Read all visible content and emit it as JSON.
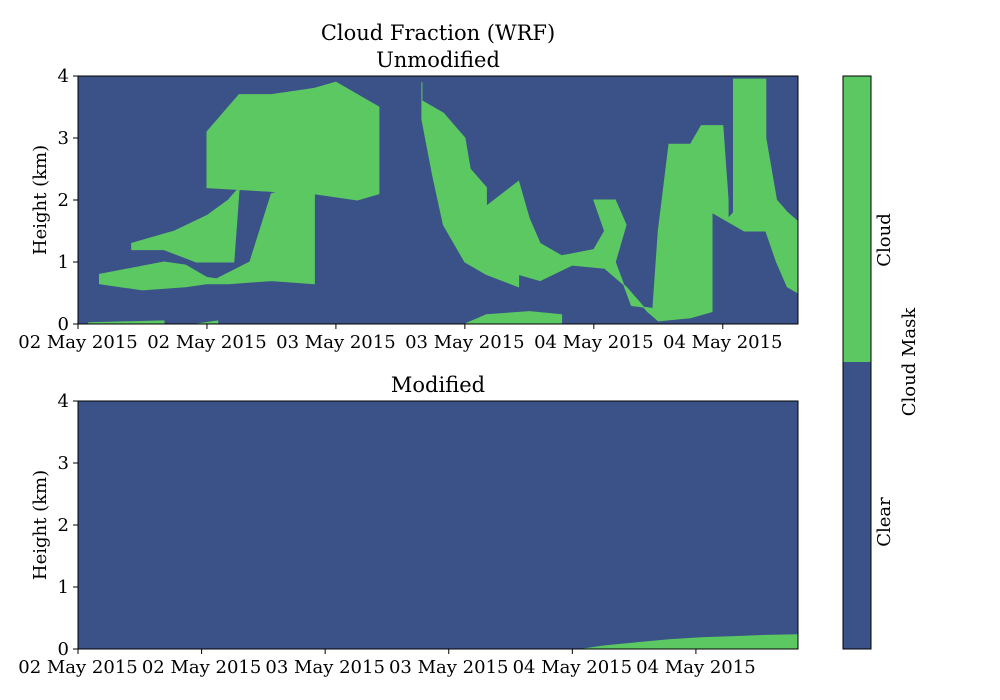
{
  "title": "Cloud Fraction (WRF)",
  "colors": {
    "clear": "#3b5288",
    "cloud": "#5cc862"
  },
  "chart_data": [
    {
      "type": "heatmap",
      "subtitle": "Unmodified",
      "xlabel": "",
      "ylabel": "Height (km)",
      "xlim_hours": [
        0,
        67
      ],
      "ylim": [
        0,
        4
      ],
      "xtick_hours": [
        0,
        12,
        24,
        36,
        48,
        60
      ],
      "xticks": [
        "02 May 2015",
        "02 May 2015",
        "03 May 2015",
        "03 May 2015",
        "04 May 2015",
        "04 May 2015"
      ],
      "yticks": [
        "0",
        "1",
        "2",
        "3",
        "4"
      ],
      "cloud_regions": [
        [
          [
            2,
            0.8
          ],
          [
            5,
            0.9
          ],
          [
            8,
            1.0
          ],
          [
            10,
            0.95
          ],
          [
            12,
            0.75
          ],
          [
            14,
            0.7
          ],
          [
            10,
            0.6
          ],
          [
            6,
            0.55
          ],
          [
            2,
            0.65
          ]
        ],
        [
          [
            5,
            1.3
          ],
          [
            9,
            1.5
          ],
          [
            12,
            1.75
          ],
          [
            14,
            2.0
          ],
          [
            15,
            2.2
          ],
          [
            14.5,
            1.0
          ],
          [
            11,
            1.0
          ],
          [
            8,
            1.2
          ],
          [
            5,
            1.2
          ]
        ],
        [
          [
            12,
            0.65
          ],
          [
            16,
            1.0
          ],
          [
            18,
            2.1
          ],
          [
            20,
            2.2
          ],
          [
            21,
            2.15
          ],
          [
            22,
            2.15
          ],
          [
            22,
            0.65
          ],
          [
            18,
            0.7
          ],
          [
            14,
            0.65
          ]
        ],
        [
          [
            12,
            2.2
          ],
          [
            12,
            3.1
          ],
          [
            13,
            3.3
          ],
          [
            14,
            3.5
          ],
          [
            15,
            3.7
          ],
          [
            18,
            3.7
          ],
          [
            20,
            3.75
          ],
          [
            22,
            3.8
          ],
          [
            24,
            3.9
          ],
          [
            25,
            3.8
          ],
          [
            28,
            3.5
          ],
          [
            28,
            2.1
          ],
          [
            26,
            2.0
          ],
          [
            22,
            2.1
          ]
        ],
        [
          [
            1,
            0.02
          ],
          [
            8,
            0.05
          ],
          [
            8,
            0.0
          ],
          [
            1,
            0.0
          ]
        ],
        [
          [
            11,
            0.0
          ],
          [
            13,
            0.05
          ],
          [
            13,
            0.0
          ],
          [
            11,
            0.0
          ]
        ],
        [
          [
            32,
            3.9
          ],
          [
            32,
            3.6
          ],
          [
            34,
            3.4
          ],
          [
            36,
            3.0
          ],
          [
            36.5,
            2.5
          ],
          [
            38,
            2.2
          ],
          [
            38,
            1.9
          ],
          [
            41,
            2.3
          ],
          [
            42,
            1.7
          ],
          [
            43,
            1.3
          ],
          [
            45,
            1.1
          ],
          [
            48,
            1.2
          ],
          [
            49,
            1.5
          ],
          [
            48,
            2.0
          ],
          [
            50,
            2.0
          ],
          [
            51,
            1.6
          ],
          [
            50,
            1.0
          ],
          [
            51.5,
            0.3
          ],
          [
            53.5,
            0.25
          ],
          [
            54,
            1.5
          ],
          [
            55,
            2.9
          ],
          [
            57,
            2.9
          ],
          [
            58,
            3.2
          ],
          [
            60,
            3.2
          ],
          [
            60.5,
            2.0
          ],
          [
            60.5,
            1.7
          ],
          [
            61,
            1.8
          ],
          [
            61,
            3.95
          ],
          [
            64,
            3.95
          ],
          [
            64,
            3.0
          ],
          [
            65,
            2.0
          ],
          [
            66,
            1.8
          ],
          [
            67,
            1.65
          ],
          [
            67,
            0.5
          ],
          [
            66,
            0.6
          ],
          [
            65,
            1.0
          ],
          [
            64,
            1.5
          ],
          [
            62,
            1.5
          ],
          [
            59,
            1.8
          ],
          [
            59,
            0.2
          ],
          [
            57,
            0.1
          ],
          [
            54,
            0.05
          ],
          [
            53,
            0.2
          ],
          [
            51,
            0.6
          ],
          [
            49,
            0.9
          ],
          [
            46,
            0.95
          ],
          [
            43,
            0.7
          ],
          [
            41,
            0.8
          ],
          [
            41,
            0.6
          ],
          [
            38,
            0.8
          ],
          [
            36,
            1.0
          ],
          [
            34,
            1.6
          ],
          [
            33,
            2.4
          ],
          [
            32,
            3.3
          ]
        ],
        [
          [
            36,
            0.0
          ],
          [
            38,
            0.15
          ],
          [
            42,
            0.2
          ],
          [
            45,
            0.15
          ],
          [
            45,
            0.0
          ]
        ]
      ]
    },
    {
      "type": "heatmap",
      "subtitle": "Modified",
      "xlabel": "",
      "ylabel": "Height (km)",
      "xlim_hours": [
        0,
        67
      ],
      "ylim": [
        0,
        4
      ],
      "xtick_hours": [
        0,
        11.5,
        23,
        34.5,
        46,
        57.5
      ],
      "xticks": [
        "02 May 2015",
        "02 May 2015",
        "03 May 2015",
        "03 May 2015",
        "04 May 2015",
        "04 May 2015"
      ],
      "yticks": [
        "0",
        "1",
        "2",
        "3",
        "4"
      ],
      "cloud_regions": [
        [
          [
            47,
            0.0
          ],
          [
            49,
            0.05
          ],
          [
            52,
            0.1
          ],
          [
            55,
            0.15
          ],
          [
            58,
            0.18
          ],
          [
            61,
            0.2
          ],
          [
            64,
            0.22
          ],
          [
            67,
            0.23
          ],
          [
            67,
            0.0
          ]
        ]
      ]
    }
  ],
  "colorbar": {
    "label": "Cloud Mask",
    "categories": [
      "Clear",
      "Cloud"
    ]
  }
}
